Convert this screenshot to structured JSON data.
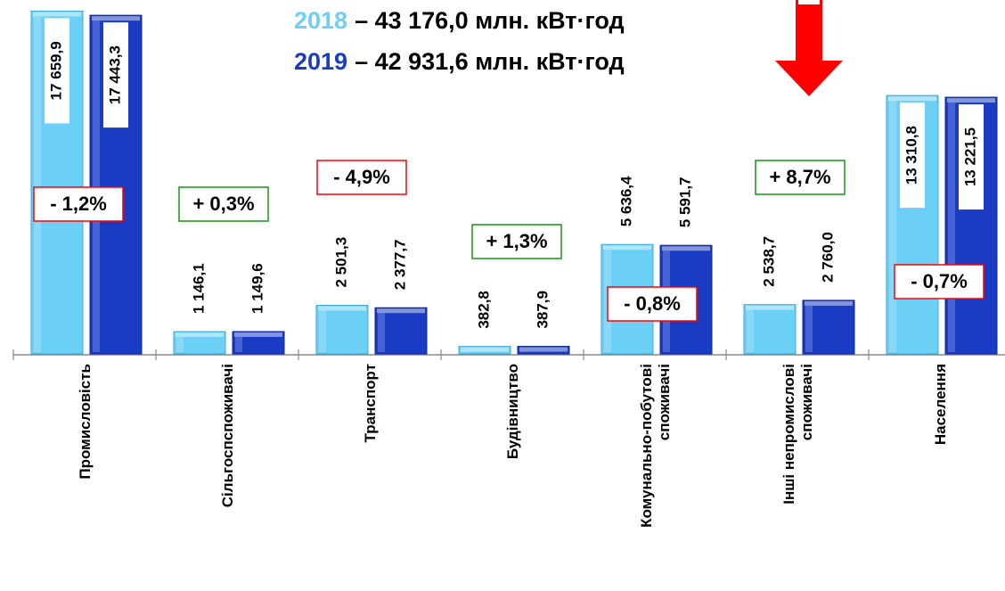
{
  "chart_data": {
    "type": "bar",
    "categories": [
      "Промисловість",
      "Сільгоспспоживачі",
      "Транспорт",
      "Будівництво",
      "Комунально-побутові\nспоживачі",
      "Інші непромислові\nспоживачі",
      "Населення"
    ],
    "series": [
      {
        "name": "2018",
        "total_label": "– 43 176,0 млн. кВт·год",
        "color": "#6ccff6",
        "values": [
          17659.9,
          1146.1,
          2501.3,
          382.8,
          5636.4,
          2538.7,
          13310.8
        ],
        "value_labels": [
          "17 659,9",
          "1 146,1",
          "2 501,3",
          "382,8",
          "5 636,4",
          "2 538,7",
          "13 310,8"
        ]
      },
      {
        "name": "2019",
        "total_label": "– 42 931,6 млн. кВт·год",
        "color": "#1a3cc4",
        "values": [
          17443.3,
          1149.6,
          2377.7,
          387.9,
          5591.7,
          2760.0,
          13221.5
        ],
        "value_labels": [
          "17 443,3",
          "1 149,6",
          "2 377,7",
          "387,9",
          "5 591,7",
          "2 760,0",
          "13 221,5"
        ]
      }
    ],
    "changes": {
      "values": [
        -1.2,
        0.3,
        -4.9,
        1.3,
        -0.8,
        8.7,
        -0.7
      ],
      "labels": [
        "- 1,2%",
        "+ 0,3%",
        "- 4,9%",
        "+ 1,3%",
        "- 0,8%",
        "+ 8,7%",
        "- 0,7%"
      ]
    },
    "ylim": [
      0,
      18000
    ]
  }
}
